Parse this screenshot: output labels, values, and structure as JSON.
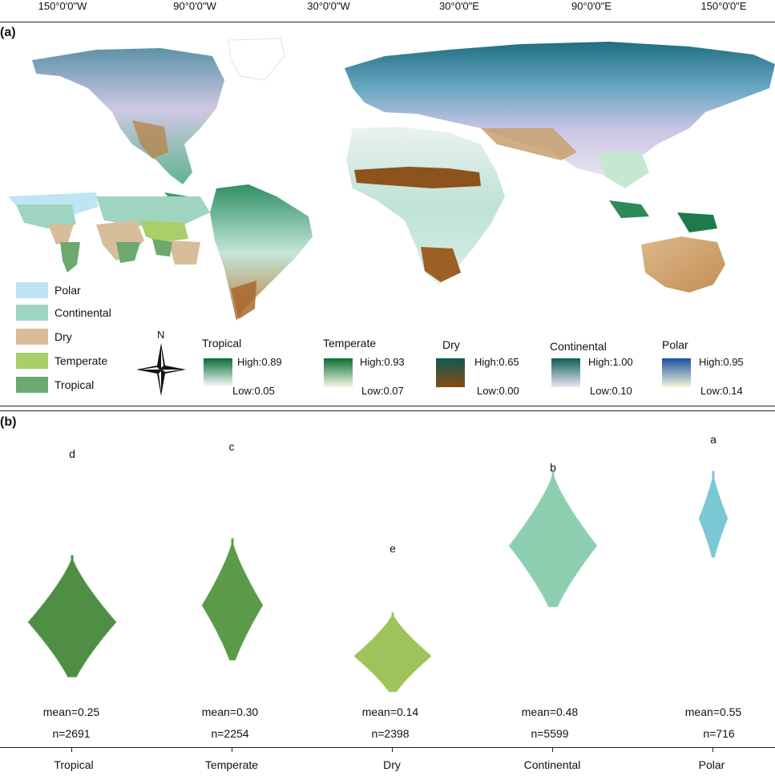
{
  "panels": {
    "a_label": "(a)",
    "b_label": "(b)"
  },
  "longitude_ticks": [
    "150°0'0\"W",
    "90°0'0\"W",
    "30°0'0\"W",
    "30°0'0\"E",
    "90°0'0\"E",
    "150°0'0\"E"
  ],
  "climate_legend": [
    {
      "label": "Polar",
      "color": "#bfe4f4"
    },
    {
      "label": "Continental",
      "color": "#9fd5c0"
    },
    {
      "label": "Dry",
      "color": "#d7bd9a"
    },
    {
      "label": "Temperate",
      "color": "#a9ce6a"
    },
    {
      "label": "Tropical",
      "color": "#6ba96e"
    }
  ],
  "north_arrow": "N",
  "colorbars": [
    {
      "title": "Tropical",
      "high": "High:0.89",
      "low": "Low:0.05",
      "top": "#0b6b3a",
      "bottom": "#ffffff"
    },
    {
      "title": "Temperate",
      "high": "High:0.93",
      "low": "Low:0.07",
      "top": "#0d6e32",
      "bottom": "#f4f9e8"
    },
    {
      "title": "Dry",
      "high": "High:0.65",
      "low": "Low:0.00",
      "top": "#0d5a52",
      "bottom": "#8a4b12"
    },
    {
      "title": "Continental",
      "high": "High:1.00",
      "low": "Low:0.10",
      "top": "#0b5e56",
      "bottom": "#efe6f4"
    },
    {
      "title": "Polar",
      "high": "High:0.95",
      "low": "Low:0.14",
      "top": "#1c4fa0",
      "bottom": "#f0f8d8"
    }
  ],
  "chart_data": {
    "type": "beeswarm",
    "categories": [
      "Tropical",
      "Temperate",
      "Dry",
      "Continental",
      "Polar"
    ],
    "series": [
      {
        "category": "Tropical",
        "letter": "d",
        "mean_label": "mean=0.25",
        "n_label": "n=2691",
        "mean": 0.25,
        "n": 2691,
        "color": "#4e8f45"
      },
      {
        "category": "Temperate",
        "letter": "c",
        "mean_label": "mean=0.30",
        "n_label": "n=2254",
        "mean": 0.3,
        "n": 2254,
        "color": "#5a9a48"
      },
      {
        "category": "Dry",
        "letter": "e",
        "mean_label": "mean=0.14",
        "n_label": "n=2398",
        "mean": 0.14,
        "n": 2398,
        "color": "#9fc35a"
      },
      {
        "category": "Continental",
        "letter": "b",
        "mean_label": "mean=0.48",
        "n_label": "n=5599",
        "mean": 0.48,
        "n": 5599,
        "color": "#8ccfb0"
      },
      {
        "category": "Polar",
        "letter": "a",
        "mean_label": "mean=0.55",
        "n_label": "n=716",
        "mean": 0.55,
        "n": 716,
        "color": "#7ac8d4"
      }
    ]
  }
}
